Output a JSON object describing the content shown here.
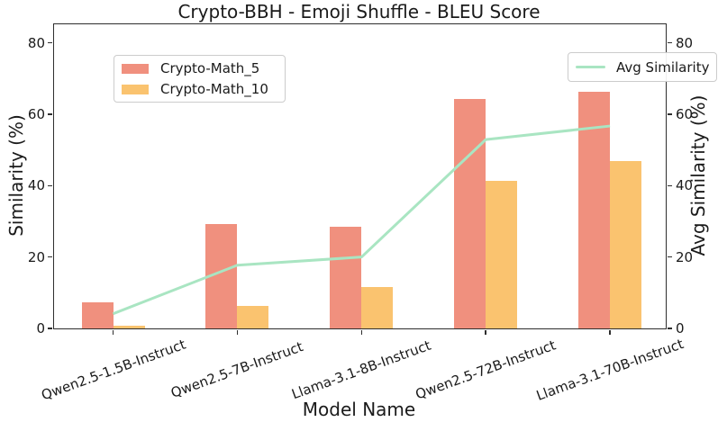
{
  "chart_data": {
    "type": "bar",
    "title": "Crypto-BBH - Emoji Shuffle - BLEU Score",
    "xlabel": "Model Name",
    "ylabel": "Similarity (%)",
    "y2label": "Avg Similarity (%)",
    "categories": [
      "Qwen2.5-1.5B-Instruct",
      "Qwen2.5-7B-Instruct",
      "Llama-3.1-8B-Instruct",
      "Qwen2.5-72B-Instruct",
      "Llama-3.1-70B-Instruct"
    ],
    "series": [
      {
        "name": "Crypto-Math_5",
        "type": "bar",
        "color": "#f0907e",
        "values": [
          7.3,
          29.2,
          28.5,
          64.4,
          66.3
        ]
      },
      {
        "name": "Crypto-Math_10",
        "type": "bar",
        "color": "#fac36f",
        "values": [
          0.8,
          6.2,
          11.5,
          41.3,
          47.0
        ]
      },
      {
        "name": "Avg Similarity",
        "type": "line",
        "color": "#a9e5c2",
        "values": [
          4.1,
          17.7,
          20.0,
          52.9,
          56.7
        ]
      }
    ],
    "ylim": [
      0,
      85.2
    ],
    "yticks": [
      0,
      20,
      40,
      60,
      80
    ],
    "grid": false,
    "legend_positions": [
      "upper left",
      "upper right"
    ],
    "spine_color": "#2e2e2e"
  }
}
